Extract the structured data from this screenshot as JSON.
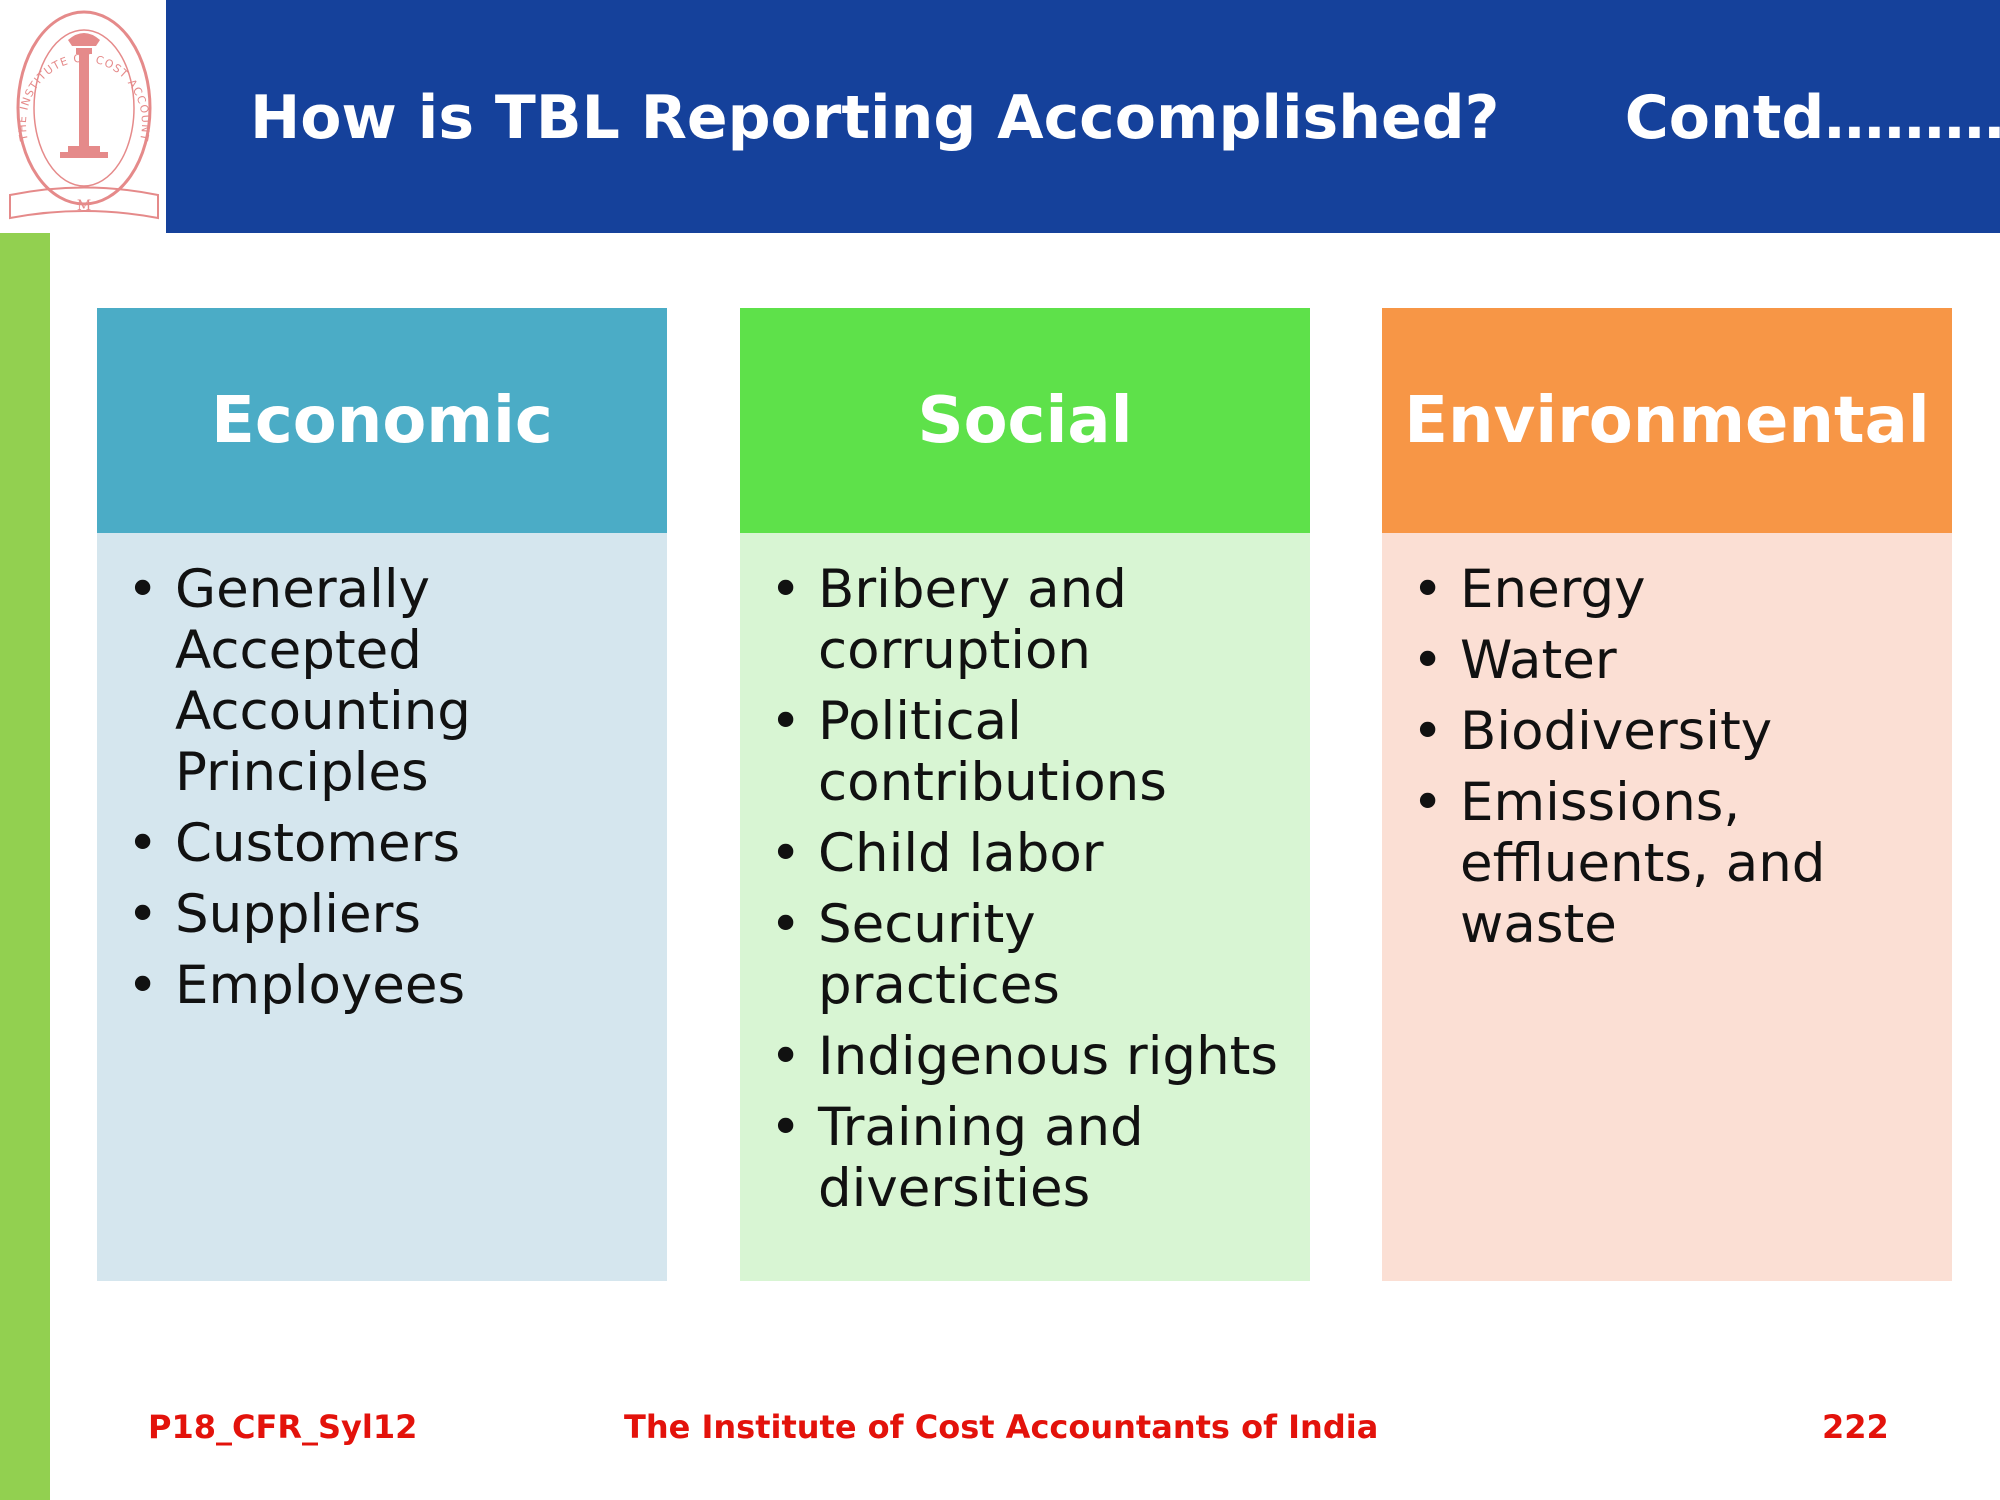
{
  "header": {
    "title": "How is TBL Reporting Accomplished?      Contd………",
    "color": "#15419b"
  },
  "logo": {
    "icon": "cost-accountants-of-india-seal-icon",
    "text": "THE INSTITUTE OF COST ACCOUNTANTS OF INDIA"
  },
  "columns": [
    {
      "heading": "Economic",
      "head_color": "#4bacc6",
      "body_color": "#d5e6ee",
      "items": [
        "Generally Accepted Accounting Principles",
        "Customers",
        "Suppliers",
        "Employees"
      ]
    },
    {
      "heading": "Social",
      "head_color": "#5ee14a",
      "body_color": "#d8f5d3",
      "items": [
        "Bribery and corruption",
        "Political contributions",
        "Child labor",
        "Security practices",
        "Indigenous rights",
        "Training and diversities"
      ]
    },
    {
      "heading": "Environmental",
      "head_color": "#f79646",
      "body_color": "#fbdfd4",
      "items": [
        "Energy",
        "Water",
        "Biodiversity",
        "Emissions, effluents, and waste"
      ]
    }
  ],
  "footer": {
    "code": "P18_CFR_Syl12",
    "institute": "The Institute of Cost Accountants of India",
    "page": "222"
  }
}
